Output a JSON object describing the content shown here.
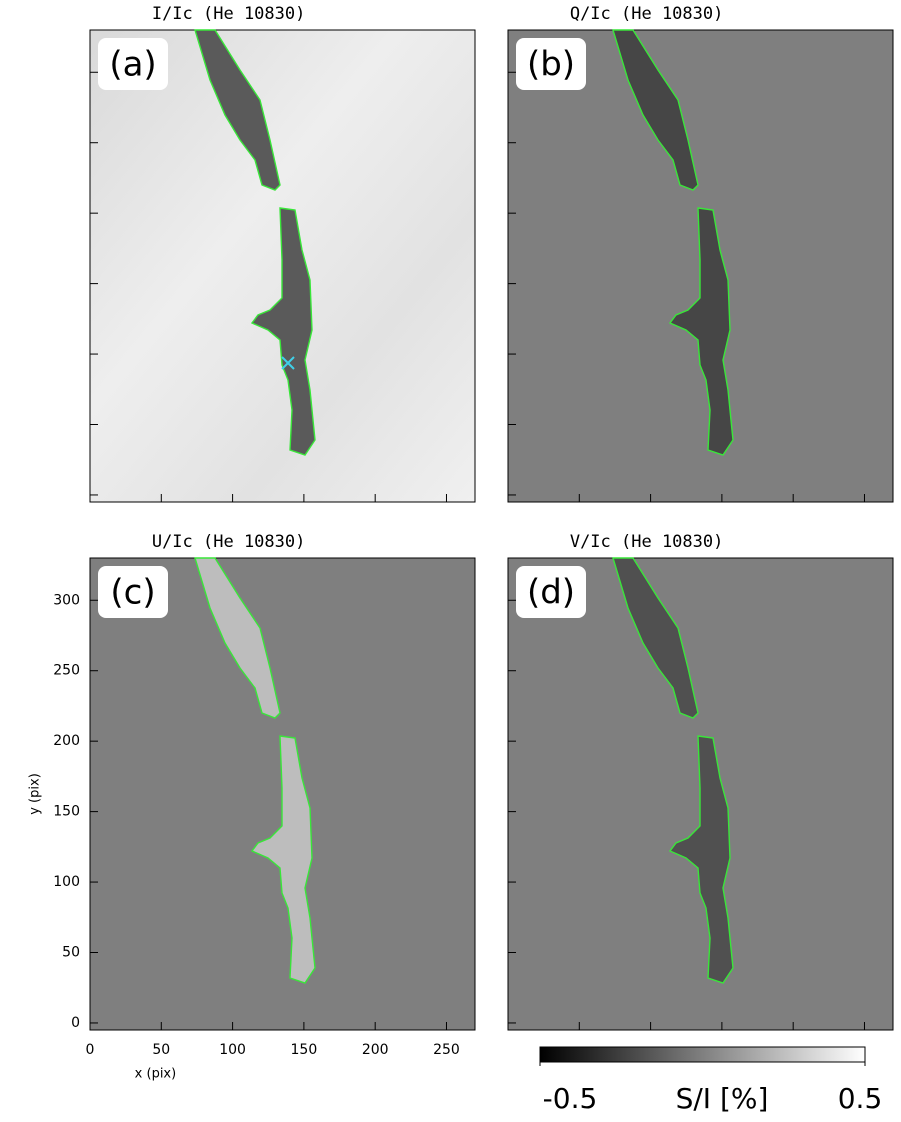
{
  "chart_data": {
    "type": "image",
    "panels": [
      {
        "title": "I/Ic (He 10830)",
        "label": "(a)"
      },
      {
        "title": "Q/Ic (He 10830)",
        "label": "(b)"
      },
      {
        "title": "U/Ic (He 10830)",
        "label": "(c)"
      },
      {
        "title": "V/Ic (He 10830)",
        "label": "(d)"
      }
    ],
    "xlabel": "x (pix)",
    "ylabel": "y (pix)",
    "xlim": [
      0,
      270
    ],
    "ylim": [
      -5,
      330
    ],
    "xticks": [
      0,
      50,
      100,
      150,
      200,
      250
    ],
    "yticks": [
      0,
      50,
      100,
      150,
      200,
      250,
      300
    ],
    "colorbar": {
      "label": "S/I [%]",
      "lim": [
        -0.5,
        0.5
      ],
      "ticks": [
        -0.5,
        0.5
      ]
    }
  }
}
